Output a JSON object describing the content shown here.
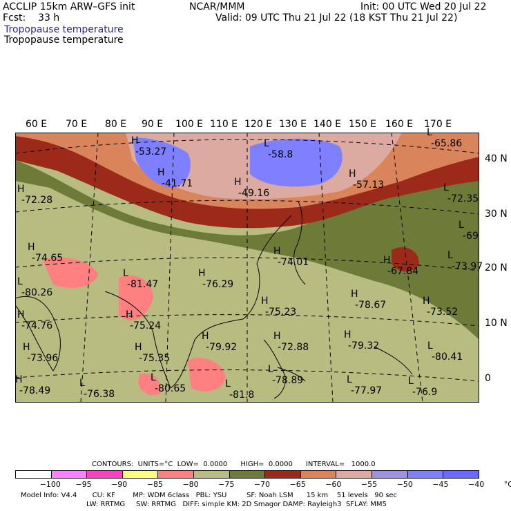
{
  "header": {
    "model": "ACCLIP 15km ARW–GFS init",
    "forecast": "Fcst:    33 h",
    "org": "NCAR/MMM",
    "init": "Init: 00 UTC Wed 20 Jul 22",
    "valid": "Valid: 09 UTC Thu 21 Jul 22 (18 KST Thu 21 Jul 22)",
    "field1": "Tropopause temperature",
    "field2": "Tropopause temperature"
  },
  "lon_labels": [
    "60 E",
    "70 E",
    "80 E",
    "90 E",
    "100 E",
    "110 E",
    "120 E",
    "130 E",
    "140 E",
    "150 E",
    "160 E",
    "170 E"
  ],
  "lat_labels": [
    "40 N",
    "30 N",
    "20 N",
    "10 N",
    "0"
  ],
  "map_labels": [
    {
      "t": "H",
      "v": "-53.27"
    },
    {
      "t": "L",
      "v": "-58.8"
    },
    {
      "t": "L",
      "v": "-65.86"
    },
    {
      "t": "H",
      "v": "-41.71"
    },
    {
      "t": "H",
      "v": "-49.16"
    },
    {
      "t": "H",
      "v": "-57.13"
    },
    {
      "t": "H",
      "v": "-72.28"
    },
    {
      "t": "L",
      "v": "-72.35"
    },
    {
      "t": "H",
      "v": "-74.65"
    },
    {
      "t": "H",
      "v": "-74.01"
    },
    {
      "t": "L",
      "v": "-69"
    },
    {
      "t": "H",
      "v": "-67.84"
    },
    {
      "t": "L",
      "v": "-73.97"
    },
    {
      "t": "L",
      "v": "-80.26"
    },
    {
      "t": "L",
      "v": "-81.47"
    },
    {
      "t": "H",
      "v": "-76.29"
    },
    {
      "t": "H",
      "v": "-78.67"
    },
    {
      "t": "H",
      "v": "-73.52"
    },
    {
      "t": "H",
      "v": "-74.76"
    },
    {
      "t": "H",
      "v": "-75.24"
    },
    {
      "t": "H",
      "v": "-75.23"
    },
    {
      "t": "H",
      "v": "-73.96"
    },
    {
      "t": "H",
      "v": "-75.35"
    },
    {
      "t": "H",
      "v": "-79.92"
    },
    {
      "t": "H",
      "v": "-72.88"
    },
    {
      "t": "H",
      "v": "-79.32"
    },
    {
      "t": "L",
      "v": "-80.41"
    },
    {
      "t": "H",
      "v": "-78.49"
    },
    {
      "t": "L",
      "v": "-76.38"
    },
    {
      "t": "L",
      "v": "-80.65"
    },
    {
      "t": "L",
      "v": "-81.8"
    },
    {
      "t": "L",
      "v": "-78.89"
    },
    {
      "t": "L",
      "v": "-77.97"
    },
    {
      "t": "L",
      "v": "-76.9"
    }
  ],
  "contours": {
    "text": "CONTOURS:  UNITS=°C  LOW=  0.0000      HIGH=  0.0000      INTERVAL=   1000.0"
  },
  "colorbar": {
    "colors": [
      "#ffffff",
      "#ff80ff",
      "#ff40c0",
      "#ffff80",
      "#ff8080",
      "#b8bc80",
      "#6e7b38",
      "#9b2a1a",
      "#d9845a",
      "#dcaaa0",
      "#a090e0",
      "#7f80ff",
      "#6a6aff"
    ],
    "ticks": [
      "−100",
      "−95",
      "−90",
      "−85",
      "−80",
      "−75",
      "−70",
      "−65",
      "−60",
      "−55",
      "−50",
      "−45",
      "−40",
      "°C"
    ]
  },
  "footer": {
    "line1": "Model Info: V4.4       CU: KF        MP: WDM 6class   PBL: YSU         SF: Noah LSM      15 km    51 levels   90 sec",
    "line2": "LW: RRTMG     SW: RRTMG   DIFF: simple KM: 2D Smagor DAMP: Rayleigh3  SFLAY: MM5"
  }
}
